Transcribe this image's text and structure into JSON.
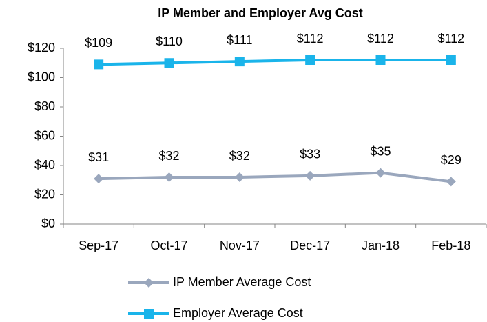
{
  "chart_data": {
    "type": "line",
    "title": "IP Member and Employer Avg Cost",
    "categories": [
      "Sep-17",
      "Oct-17",
      "Nov-17",
      "Dec-17",
      "Jan-18",
      "Feb-18"
    ],
    "series": [
      {
        "name": "IP Member Average Cost",
        "color": "#9aa7bd",
        "marker": "diamond",
        "values": [
          31,
          32,
          32,
          33,
          35,
          29
        ],
        "value_labels": [
          "$31",
          "$32",
          "$32",
          "$33",
          "$35",
          "$29"
        ]
      },
      {
        "name": "Employer Average Cost",
        "color": "#1ab4ea",
        "marker": "square",
        "values": [
          109,
          110,
          111,
          112,
          112,
          112
        ],
        "value_labels": [
          "$109",
          "$110",
          "$111",
          "$112",
          "$112",
          "$112"
        ]
      }
    ],
    "ylim": [
      0,
      120
    ],
    "yticks": [
      {
        "value": 0,
        "label": "$0"
      },
      {
        "value": 20,
        "label": "$20"
      },
      {
        "value": 40,
        "label": "$40"
      },
      {
        "value": 60,
        "label": "$60"
      },
      {
        "value": 80,
        "label": "$80"
      },
      {
        "value": 100,
        "label": "$100"
      },
      {
        "value": 120,
        "label": "$120"
      }
    ],
    "grid": false,
    "legend": "bottom"
  }
}
